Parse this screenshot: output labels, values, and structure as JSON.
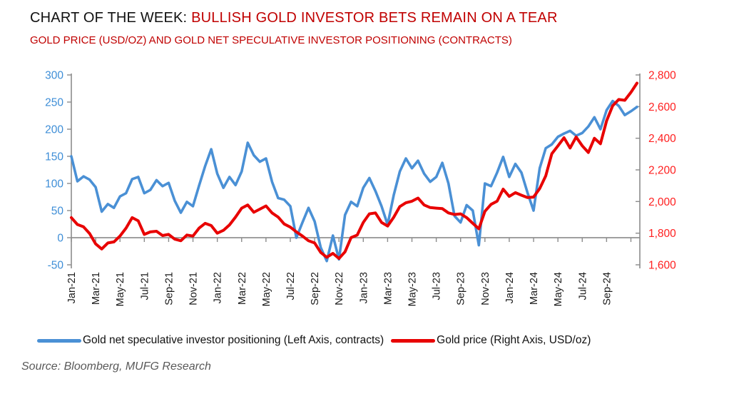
{
  "title": {
    "prefix": "CHART OF THE WEEK: ",
    "highlight": "BULLISH GOLD INVESTOR BETS REMAIN ON A TEAR"
  },
  "subtitle": "GOLD PRICE (USD/OZ) AND GOLD NET SPECULATIVE INVESTOR POSITIONING (CONTRACTS)",
  "source": "Source: Bloomberg, MUFG Research",
  "colors": {
    "positioning_line": "#4a90d5",
    "price_line": "#e80000",
    "left_axis_labels": "#3e8ed7",
    "right_axis_labels": "#ff1f1f",
    "title_highlight": "#c00000",
    "axis_gray": "#8c8c8c",
    "x_labels": "#1a1a1a"
  },
  "legend": [
    {
      "label": "Gold net speculative investor positioning (Left Axis, contracts)",
      "color": "#4a90d5"
    },
    {
      "label": "Gold price (Right Axis, USD/oz)",
      "color": "#e80000"
    }
  ],
  "chart_data": {
    "type": "line",
    "title": "GOLD PRICE (USD/OZ) AND GOLD NET SPECULATIVE INVESTOR POSITIONING (CONTRACTS)",
    "x_axis": {
      "tick_labels": [
        "Jan-21",
        "Mar-21",
        "May-21",
        "Jul-21",
        "Sep-21",
        "Nov-21",
        "Jan-22",
        "Mar-22",
        "May-22",
        "Jul-22",
        "Sep-22",
        "Nov-22",
        "Jan-23",
        "Mar-23",
        "May-23",
        "Jul-23",
        "Sep-23",
        "Nov-23",
        "Jan-24",
        "Mar-24",
        "May-24",
        "Jul-24",
        "Sep-24"
      ],
      "months_between_labels": 2,
      "total_months_span": 46.5
    },
    "left_axis": {
      "tick_labels": [
        "300",
        "250",
        "200",
        "150",
        "100",
        "50",
        "0",
        "-50"
      ],
      "tick_values": [
        300,
        250,
        200,
        150,
        100,
        50,
        0,
        -50
      ],
      "min": -50,
      "max": 300
    },
    "right_axis": {
      "tick_labels": [
        "2,800",
        "2,600",
        "2,400",
        "2,200",
        "2,000",
        "1,800",
        "1,600"
      ],
      "tick_values": [
        2800,
        2600,
        2400,
        2200,
        2000,
        1800,
        1600
      ],
      "min": 1600,
      "max": 2800
    },
    "points_per_month": 2,
    "series": [
      {
        "name": "Gold net speculative investor positioning (Left Axis, contracts)",
        "axis": "left",
        "color": "#4a90d5",
        "stroke_width": 3.6,
        "values": [
          150,
          104,
          113,
          107,
          93,
          48,
          62,
          55,
          76,
          82,
          108,
          112,
          82,
          88,
          106,
          95,
          101,
          68,
          46,
          66,
          58,
          96,
          132,
          163,
          118,
          92,
          112,
          97,
          122,
          175,
          152,
          140,
          146,
          103,
          73,
          70,
          58,
          0,
          28,
          55,
          30,
          -18,
          -43,
          4,
          -40,
          42,
          66,
          58,
          92,
          110,
          86,
          58,
          24,
          78,
          122,
          146,
          128,
          142,
          118,
          103,
          112,
          138,
          100,
          40,
          28,
          60,
          50,
          -14,
          100,
          95,
          120,
          149,
          112,
          136,
          120,
          83,
          50,
          128,
          165,
          172,
          186,
          192,
          197,
          188,
          193,
          205,
          222,
          200,
          235,
          252,
          243,
          226,
          233,
          241
        ]
      },
      {
        "name": "Gold price (Right Axis, USD/oz)",
        "axis": "right",
        "color": "#e80000",
        "stroke_width": 4,
        "values": [
          1898,
          1855,
          1840,
          1798,
          1732,
          1700,
          1738,
          1745,
          1782,
          1832,
          1898,
          1878,
          1792,
          1808,
          1812,
          1785,
          1792,
          1762,
          1752,
          1788,
          1782,
          1832,
          1862,
          1848,
          1800,
          1818,
          1852,
          1902,
          1958,
          1978,
          1932,
          1952,
          1972,
          1928,
          1902,
          1858,
          1838,
          1808,
          1782,
          1752,
          1738,
          1678,
          1648,
          1672,
          1640,
          1682,
          1772,
          1788,
          1868,
          1922,
          1928,
          1868,
          1845,
          1900,
          1968,
          1992,
          2002,
          2022,
          1978,
          1962,
          1958,
          1955,
          1928,
          1918,
          1922,
          1898,
          1862,
          1828,
          1938,
          1982,
          2002,
          2078,
          2032,
          2056,
          2040,
          2025,
          2028,
          2082,
          2162,
          2302,
          2352,
          2403,
          2338,
          2408,
          2352,
          2310,
          2400,
          2365,
          2510,
          2605,
          2645,
          2640,
          2690,
          2748
        ]
      }
    ],
    "legend_position": "bottom",
    "grid": "zero-line-only"
  }
}
